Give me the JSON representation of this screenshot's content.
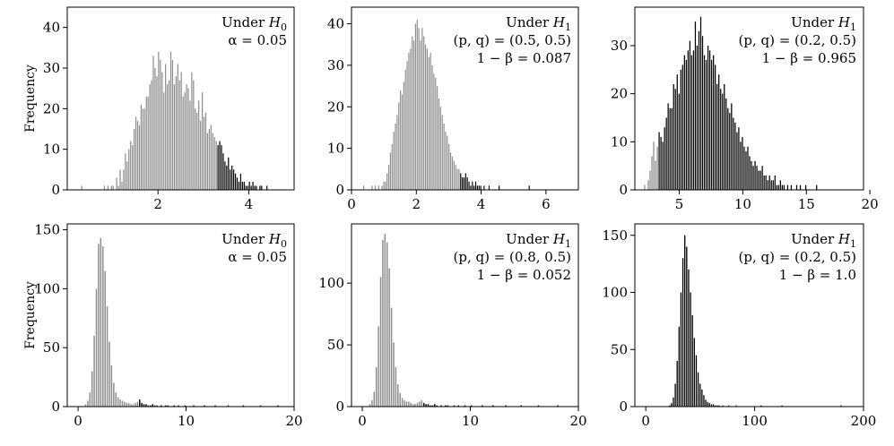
{
  "chart_data": [
    {
      "type": "histogram",
      "ylabel": "Frequency",
      "xlim": [
        0,
        5
      ],
      "ylim": [
        0,
        45
      ],
      "xticks": [
        2,
        4
      ],
      "yticks": [
        0,
        10,
        20,
        30,
        40
      ],
      "annotation": [
        "Under H0",
        "α = 0.05"
      ],
      "colors": {
        "below": "#8c8c8c",
        "above": "#000000"
      },
      "threshold": 3.3,
      "bins": {
        "start": 0.3,
        "width": 0.0385,
        "counts": [
          1,
          0,
          0,
          0,
          0,
          0,
          0,
          0,
          0,
          0,
          0,
          0,
          0,
          1,
          0,
          1,
          0,
          1,
          1,
          0,
          3,
          1,
          5,
          2,
          5,
          9,
          7,
          10,
          12,
          11,
          15,
          18,
          17,
          16,
          21,
          20,
          20,
          23,
          23,
          26,
          27,
          33,
          30,
          28,
          34,
          32,
          29,
          24,
          31,
          26,
          27,
          34,
          32,
          26,
          28,
          31,
          27,
          29,
          23,
          24,
          26,
          25,
          22,
          29,
          27,
          20,
          19,
          22,
          17,
          24,
          18,
          19,
          14,
          15,
          16,
          14,
          13,
          12,
          11,
          12,
          11,
          9,
          7,
          6,
          8,
          5,
          6,
          5,
          4,
          3,
          2,
          4,
          2,
          2,
          1,
          1,
          2,
          1,
          2,
          1,
          1,
          0,
          1,
          1,
          0,
          0,
          1,
          0
        ]
      }
    },
    {
      "type": "histogram",
      "xlim": [
        0,
        7
      ],
      "ylim": [
        0,
        44
      ],
      "xticks": [
        0,
        2,
        4,
        6
      ],
      "yticks": [
        0,
        10,
        20,
        30,
        40
      ],
      "annotation": [
        "Under H1",
        "(p, q) = (0.5, 0.5)",
        "1 − β = 0.087"
      ],
      "colors": {
        "below": "#8c8c8c",
        "above": "#000000"
      },
      "threshold": 3.3,
      "bins": {
        "start": 0.35,
        "width": 0.0516,
        "counts": [
          1,
          0,
          0,
          0,
          0,
          1,
          0,
          1,
          0,
          1,
          0,
          1,
          2,
          2,
          4,
          6,
          9,
          11,
          14,
          16,
          18,
          21,
          24,
          23,
          26,
          29,
          31,
          33,
          34,
          37,
          36,
          40,
          41,
          39,
          36,
          39,
          37,
          35,
          34,
          32,
          33,
          30,
          28,
          27,
          25,
          22,
          20,
          18,
          16,
          14,
          13,
          11,
          9,
          8,
          7,
          6,
          5,
          5,
          4,
          3,
          3,
          4,
          3,
          2,
          1,
          2,
          1,
          2,
          1,
          1,
          1,
          0,
          1,
          0,
          0,
          1,
          0,
          0,
          0,
          0,
          0,
          1,
          0,
          0,
          0,
          0,
          0,
          0,
          0,
          0,
          0,
          0,
          0,
          0,
          0,
          0,
          0,
          0,
          0,
          1
        ]
      }
    },
    {
      "type": "histogram",
      "xlim": [
        1.5,
        19.5
      ],
      "ylim": [
        0,
        38
      ],
      "xticks": [
        5,
        10,
        15,
        20
      ],
      "yticks": [
        0,
        10,
        20,
        30
      ],
      "annotation": [
        "Under H1",
        "(p, q) = (0.2, 0.5)",
        "1 − β = 0.965"
      ],
      "colors": {
        "below": "#8c8c8c",
        "above": "#000000"
      },
      "threshold": 3.3,
      "bins": {
        "start": 2.2,
        "width": 0.1425,
        "counts": [
          1,
          0,
          2,
          4,
          7,
          10,
          6,
          9,
          12,
          11,
          10,
          13,
          15,
          18,
          17,
          17,
          22,
          21,
          24,
          20,
          25,
          26,
          28,
          27,
          29,
          31,
          28,
          29,
          35,
          30,
          33,
          36,
          32,
          28,
          27,
          30,
          29,
          27,
          28,
          26,
          22,
          24,
          21,
          20,
          22,
          19,
          17,
          16,
          18,
          15,
          14,
          12,
          13,
          10,
          11,
          9,
          8,
          9,
          7,
          6,
          5,
          6,
          5,
          4,
          4,
          5,
          3,
          3,
          2,
          3,
          2,
          2,
          3,
          1,
          1,
          2,
          1,
          1,
          0,
          1,
          0,
          1,
          0,
          0,
          1,
          0,
          1,
          0,
          0,
          1,
          0,
          0,
          0,
          0,
          0,
          1
        ]
      }
    },
    {
      "type": "histogram",
      "ylabel": "Frequency",
      "xlim": [
        -1,
        20
      ],
      "ylim": [
        0,
        155
      ],
      "xticks": [
        0,
        10,
        20
      ],
      "yticks": [
        0,
        50,
        100,
        150
      ],
      "annotation": [
        "Under H0",
        "α = 0.05"
      ],
      "colors": {
        "below": "#8c8c8c",
        "above": "#000000"
      },
      "threshold": 5.5,
      "bins": {
        "start": 0.6,
        "width": 0.2,
        "counts": [
          2,
          5,
          12,
          30,
          60,
          100,
          138,
          143,
          136,
          115,
          85,
          55,
          35,
          20,
          12,
          8,
          6,
          5,
          4,
          3,
          3,
          2,
          2,
          3,
          4,
          6,
          3,
          2,
          2,
          1,
          1,
          2,
          1,
          1,
          0,
          1,
          0,
          1,
          1,
          0,
          0,
          1,
          0,
          1,
          0,
          0,
          1,
          0,
          0,
          0,
          1,
          0,
          0,
          0,
          0,
          1,
          0,
          0,
          0,
          0,
          1,
          0,
          0,
          0,
          0,
          0,
          1,
          0,
          0,
          0,
          0,
          0,
          0,
          1,
          0,
          0,
          0,
          0,
          0,
          0,
          0,
          1,
          0,
          0,
          0,
          0,
          0,
          0,
          0,
          1
        ]
      }
    },
    {
      "type": "histogram",
      "xlim": [
        -1,
        20
      ],
      "ylim": [
        0,
        148
      ],
      "xticks": [
        0,
        10,
        20
      ],
      "yticks": [
        0,
        50,
        100
      ],
      "annotation": [
        "Under H1",
        "(p, q) = (0.8, 0.5)",
        "1 − β = 0.052"
      ],
      "colors": {
        "below": "#8c8c8c",
        "above": "#000000"
      },
      "threshold": 5.5,
      "bins": {
        "start": 0.6,
        "width": 0.2,
        "counts": [
          2,
          5,
          12,
          32,
          65,
          105,
          135,
          140,
          133,
          112,
          80,
          52,
          32,
          18,
          11,
          7,
          5,
          4,
          4,
          3,
          2,
          2,
          3,
          4,
          5,
          3,
          2,
          2,
          1,
          1,
          2,
          1,
          0,
          1,
          0,
          1,
          1,
          0,
          0,
          1,
          0,
          1,
          0,
          0,
          1,
          0,
          0,
          1,
          0,
          0,
          0,
          0,
          1,
          0,
          0,
          0,
          0,
          1,
          0,
          0,
          0,
          0,
          0,
          1,
          0,
          0,
          0,
          0,
          0,
          0,
          1,
          0,
          0,
          0,
          0,
          0,
          0,
          0,
          1,
          0,
          0,
          0,
          0,
          0,
          0,
          0,
          0,
          1,
          0
        ]
      }
    },
    {
      "type": "histogram",
      "xlim": [
        -10,
        200
      ],
      "ylim": [
        0,
        160
      ],
      "xticks": [
        0,
        100,
        200
      ],
      "yticks": [
        0,
        50,
        100,
        150
      ],
      "annotation": [
        "Under H1",
        "(p, q) = (0.2, 0.5)",
        "1 − β = 1.0"
      ],
      "colors": {
        "below": "#8c8c8c",
        "above": "#000000"
      },
      "threshold": 5.5,
      "bins": {
        "start": 21,
        "width": 1.75,
        "counts": [
          1,
          3,
          8,
          20,
          40,
          70,
          100,
          130,
          150,
          140,
          120,
          100,
          80,
          60,
          45,
          30,
          20,
          15,
          10,
          6,
          4,
          3,
          2,
          2,
          1,
          1,
          1,
          0,
          1,
          0,
          0,
          1,
          0,
          0,
          0,
          1,
          0,
          0,
          0,
          0,
          0,
          0,
          0,
          0,
          0,
          0,
          0,
          0,
          1,
          0,
          0,
          0,
          0,
          0,
          0,
          0,
          0,
          0,
          0,
          1,
          0,
          0,
          0,
          0,
          0,
          0,
          0,
          0,
          0,
          0,
          0,
          0,
          0,
          0,
          0,
          0,
          0,
          0,
          0,
          0,
          0,
          0,
          0,
          0,
          0,
          0,
          0,
          0,
          0,
          0,
          1
        ]
      }
    }
  ]
}
